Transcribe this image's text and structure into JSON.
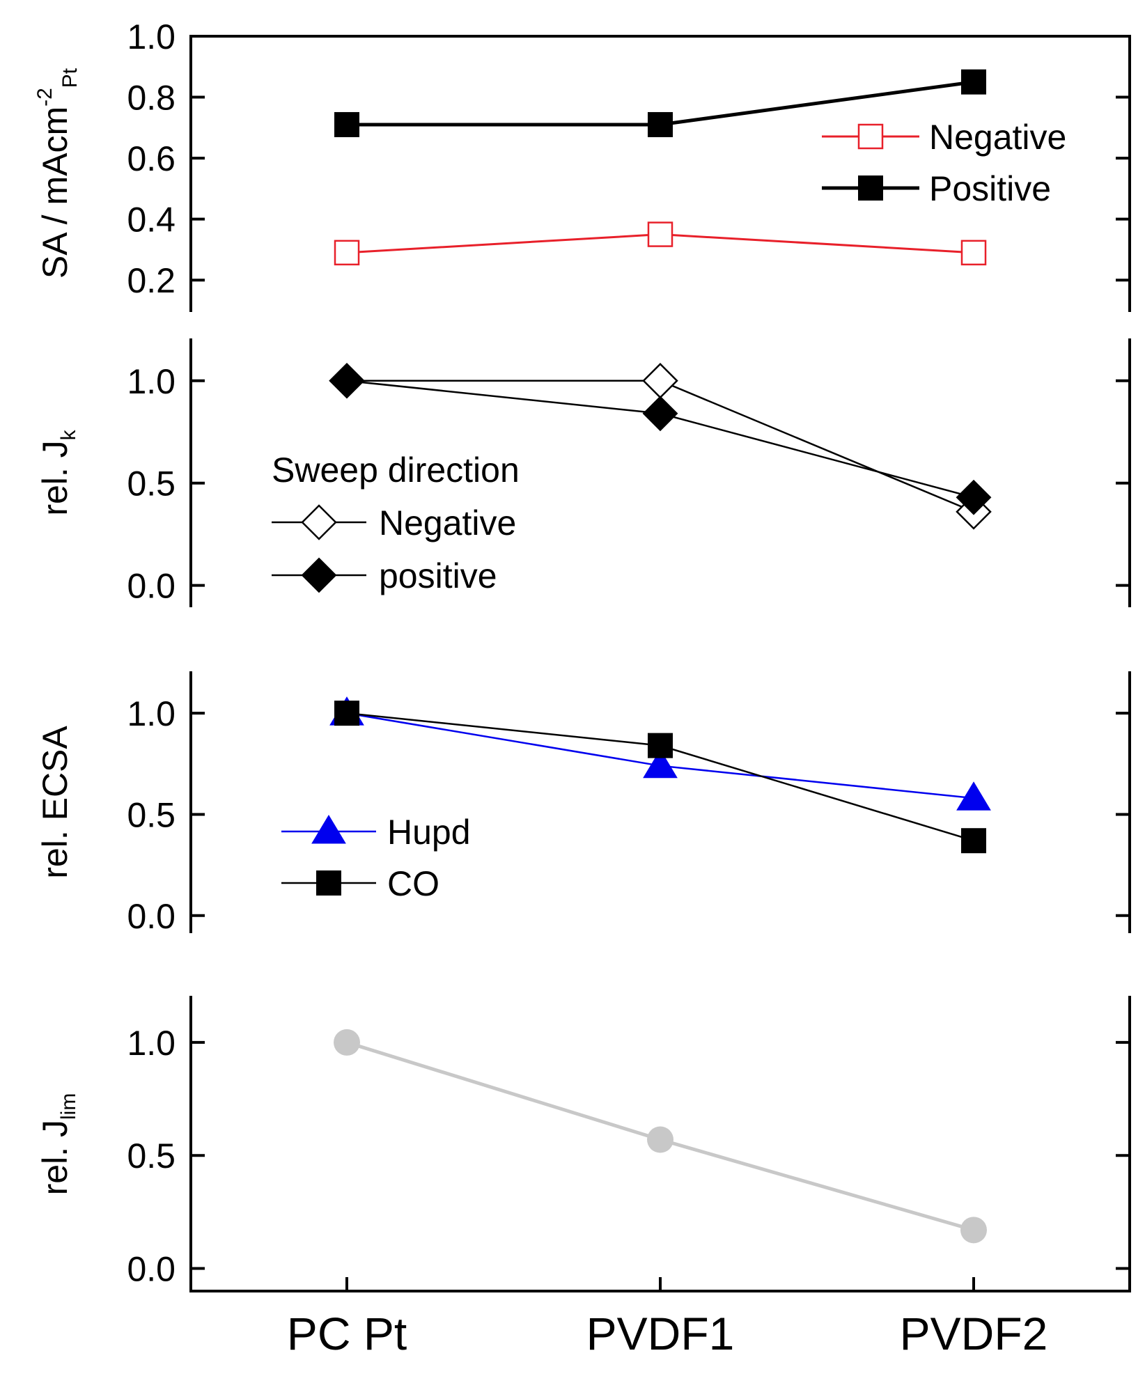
{
  "chart_data": {
    "type": "line",
    "categories": [
      "PC Pt",
      "PVDF1",
      "PVDF2"
    ],
    "panels": [
      {
        "id": "sa",
        "ylabel": {
          "main": "SA / mAcm",
          "sup": "-2",
          "sub": "Pt"
        },
        "ylim": [
          0.1,
          1.0
        ],
        "yticks": [
          0.2,
          0.4,
          0.6,
          0.8,
          1.0
        ],
        "tick_labels": [
          "0.2",
          "0.4",
          "0.6",
          "0.8",
          "1.0"
        ],
        "legend_title": "",
        "legend_position": "top-right",
        "series": [
          {
            "name": "Negative",
            "marker": "square",
            "filled": false,
            "color": "#e8202a",
            "values": [
              0.29,
              0.35,
              0.29
            ]
          },
          {
            "name": "Positive",
            "marker": "square",
            "filled": true,
            "color": "#000000",
            "values": [
              0.71,
              0.71,
              0.85
            ]
          }
        ]
      },
      {
        "id": "jk",
        "ylabel": {
          "main": "rel. J",
          "sub": "k"
        },
        "ylim": [
          -0.1,
          1.2
        ],
        "yticks": [
          0.0,
          0.5,
          1.0
        ],
        "tick_labels": [
          "0.0",
          "0.5",
          "1.0"
        ],
        "legend_title": "Sweep direction",
        "legend_position": "lower-left",
        "series": [
          {
            "name": "Negative",
            "marker": "diamond",
            "filled": false,
            "color": "#000000",
            "values": [
              1.0,
              1.0,
              0.36
            ]
          },
          {
            "name": "positive",
            "marker": "diamond",
            "filled": true,
            "color": "#000000",
            "values": [
              1.0,
              0.84,
              0.43
            ]
          }
        ]
      },
      {
        "id": "ecsa",
        "ylabel": {
          "main": "rel. ECSA"
        },
        "ylim": [
          -0.08,
          1.2
        ],
        "yticks": [
          0.0,
          0.5,
          1.0
        ],
        "tick_labels": [
          "0.0",
          "0.5",
          "1.0"
        ],
        "legend_title": "",
        "legend_position": "lower-left",
        "series": [
          {
            "name": "Hupd",
            "marker": "triangle",
            "filled": true,
            "color": "#0000ee",
            "values": [
              1.0,
              0.74,
              0.58
            ]
          },
          {
            "name": "CO",
            "marker": "square",
            "filled": true,
            "color": "#000000",
            "values": [
              1.0,
              0.84,
              0.37
            ]
          }
        ]
      },
      {
        "id": "jlim",
        "ylabel": {
          "main": "rel. J",
          "sub": "lim"
        },
        "ylim": [
          -0.1,
          1.2
        ],
        "yticks": [
          0.0,
          0.5,
          1.0
        ],
        "tick_labels": [
          "0.0",
          "0.5",
          "1.0"
        ],
        "legend_title": "",
        "legend_position": "none",
        "series": [
          {
            "name": "",
            "marker": "circle",
            "filled": true,
            "color": "#c8c8c8",
            "values": [
              1.0,
              0.57,
              0.17
            ]
          }
        ]
      }
    ]
  }
}
